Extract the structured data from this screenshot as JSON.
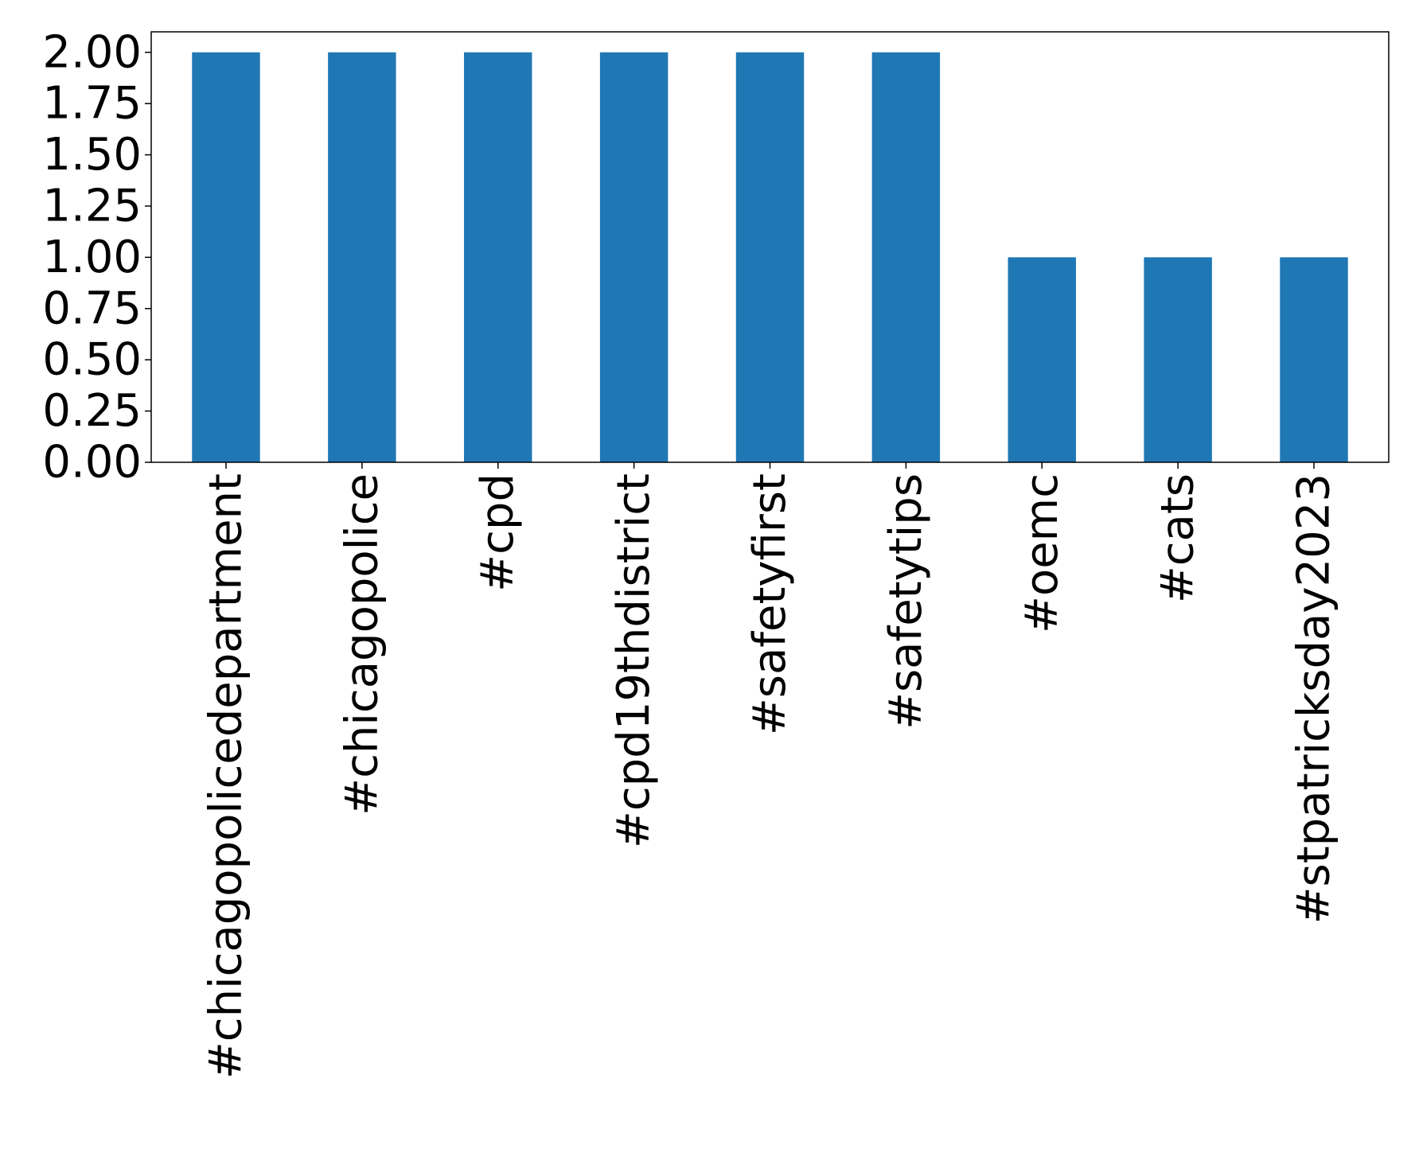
{
  "chart_data": {
    "type": "bar",
    "categories": [
      "#chicagopolicedepartment",
      "#chicagopolice",
      "#cpd",
      "#cpd19thdistrict",
      "#safetyfirst",
      "#safetytips",
      "#oemc",
      "#cats",
      "#stpatricksday2023"
    ],
    "values": [
      2,
      2,
      2,
      2,
      2,
      2,
      1,
      1,
      1
    ],
    "yticks": [
      "0.00",
      "0.25",
      "0.50",
      "0.75",
      "1.00",
      "1.25",
      "1.50",
      "1.75",
      "2.00"
    ],
    "ylim": [
      0,
      2.1
    ],
    "grid": false,
    "legend": "none",
    "title": "",
    "xlabel": "",
    "ylabel": "",
    "bar_color": "#1f77b4"
  }
}
